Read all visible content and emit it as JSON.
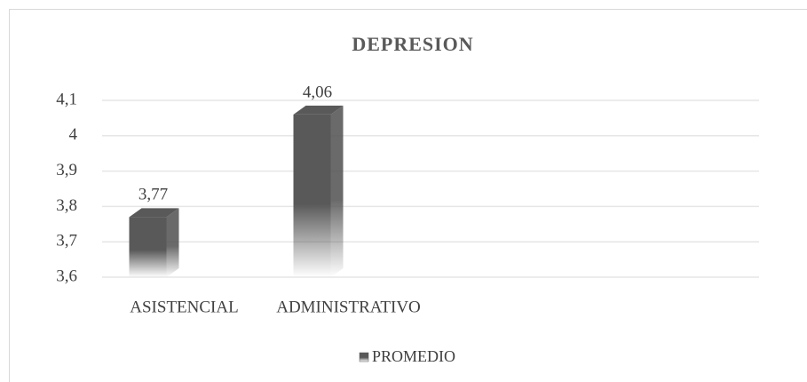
{
  "chart_data": {
    "type": "bar3d",
    "title": "DEPRESION",
    "categories": [
      "ASISTENCIAL",
      "ADMINISTRATIVO",
      null,
      null
    ],
    "series": [
      {
        "name": "PROMEDIO",
        "color": "#595959",
        "values": [
          3.77,
          4.06,
          null,
          null
        ],
        "value_labels": [
          "3,77",
          "4,06",
          null,
          null
        ]
      }
    ],
    "ylim": [
      3.6,
      4.1
    ],
    "yticks": [
      {
        "value": 3.6,
        "label": "3,6"
      },
      {
        "value": 3.7,
        "label": "3,7"
      },
      {
        "value": 3.8,
        "label": "3,8"
      },
      {
        "value": 3.9,
        "label": "3,9"
      },
      4,
      {
        "value": 4.1,
        "label": "4,1"
      }
    ],
    "grid": true,
    "legend": "bottom"
  }
}
